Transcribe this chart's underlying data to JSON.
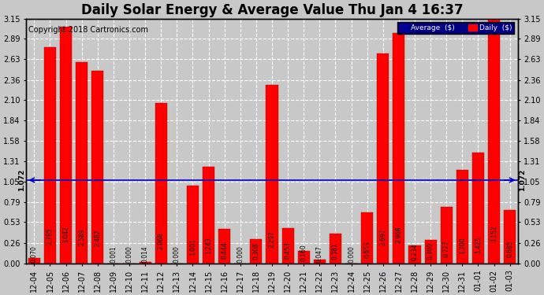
{
  "title": "Daily Solar Energy & Average Value Thu Jan 4 16:37",
  "copyright": "Copyright 2018 Cartronics.com",
  "categories": [
    "12-04",
    "12-05",
    "12-06",
    "12-07",
    "12-08",
    "12-09",
    "12-10",
    "12-11",
    "12-12",
    "12-13",
    "12-14",
    "12-15",
    "12-16",
    "12-17",
    "12-18",
    "12-19",
    "12-20",
    "12-21",
    "12-22",
    "12-23",
    "12-24",
    "12-25",
    "12-26",
    "12-27",
    "12-28",
    "12-29",
    "12-30",
    "12-31",
    "01-01",
    "01-02",
    "01-03"
  ],
  "values": [
    0.07,
    2.785,
    3.042,
    2.589,
    2.482,
    0.001,
    0.0,
    0.014,
    2.068,
    0.0,
    1.001,
    1.243,
    0.444,
    0.0,
    0.308,
    2.297,
    0.453,
    0.16,
    0.047,
    0.381,
    0.0,
    0.653,
    2.697,
    2.968,
    0.234,
    0.3,
    0.727,
    1.2,
    1.425,
    3.152,
    0.685
  ],
  "bar_color": "#ff0000",
  "average_line": 1.072,
  "average_color": "#0000cc",
  "ylim": [
    0.0,
    3.15
  ],
  "yticks": [
    0.0,
    0.26,
    0.53,
    0.79,
    1.05,
    1.31,
    1.58,
    1.84,
    2.1,
    2.36,
    2.63,
    2.89,
    3.15
  ],
  "background_color": "#c8c8c8",
  "grid_color": "#ffffff",
  "legend_avg_color": "#000099",
  "legend_daily_color": "#ff0000",
  "title_fontsize": 12,
  "copyright_fontsize": 7,
  "tick_fontsize": 7,
  "value_fontsize": 5.5,
  "arrow_label": "1.072",
  "fig_width": 6.9,
  "fig_height": 3.75
}
